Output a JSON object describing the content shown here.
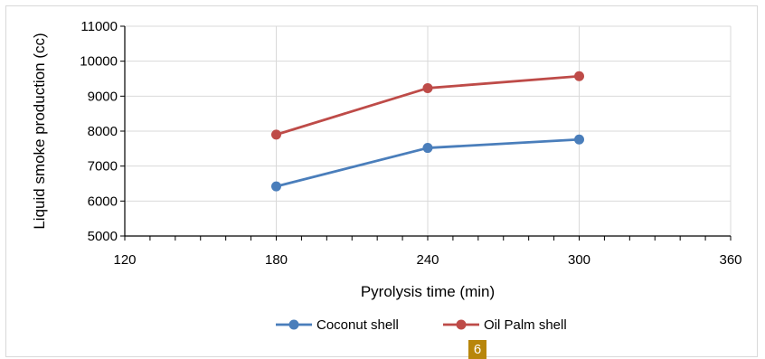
{
  "chart_data": {
    "type": "line",
    "title": "",
    "xlabel": "Pyrolysis time (min)",
    "ylabel": "Liquid smoke production (cc)",
    "xlim": [
      120,
      360
    ],
    "ylim": [
      5000,
      11000
    ],
    "xticks": [
      120,
      180,
      240,
      300,
      360
    ],
    "yticks": [
      5000,
      6000,
      7000,
      8000,
      9000,
      10000,
      11000
    ],
    "grid": true,
    "legend_position": "bottom",
    "series": [
      {
        "name": "Coconut shell",
        "color": "#4a7ebb",
        "x": [
          180,
          240,
          300
        ],
        "y": [
          6420,
          7520,
          7760
        ]
      },
      {
        "name": "Oil Palm shell",
        "color": "#be4b48",
        "x": [
          180,
          240,
          300
        ],
        "y": [
          7900,
          9230,
          9570
        ]
      }
    ]
  },
  "page_badge": "6"
}
